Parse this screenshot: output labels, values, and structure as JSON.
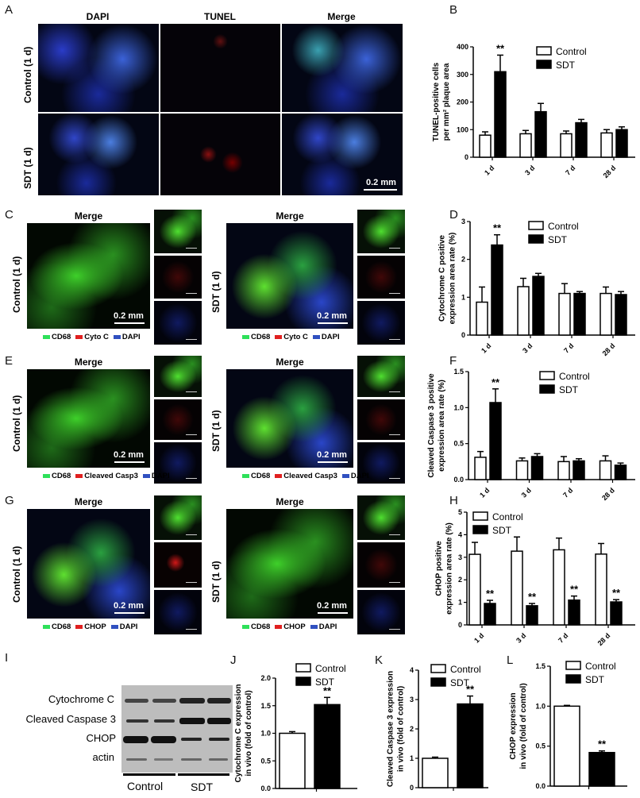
{
  "panels": {
    "A": "A",
    "B": "B",
    "C": "C",
    "D": "D",
    "E": "E",
    "F": "F",
    "G": "G",
    "H": "H",
    "I": "I",
    "J": "J",
    "K": "K",
    "L": "L"
  },
  "panel_a": {
    "columns": [
      "DAPI",
      "TUNEL",
      "Merge"
    ],
    "rows": [
      "Control (1 d)",
      "SDT (1 d)"
    ],
    "scale": "0.2 mm"
  },
  "panel_c": {
    "title_left": "Merge",
    "title_right": "Merge",
    "row_left": "Control (1 d)",
    "row_right": "SDT (1 d)",
    "scale": "0.2 mm",
    "legend": [
      "CD68",
      "Cyto C",
      "DAPI"
    ]
  },
  "panel_e": {
    "title_left": "Merge",
    "title_right": "Merge",
    "row_left": "Control (1 d)",
    "row_right": "SDT (1 d)",
    "scale": "0.2 mm",
    "legend": [
      "CD68",
      "Cleaved Casp3",
      "DAPI"
    ]
  },
  "panel_g": {
    "title_left": "Merge",
    "title_right": "Merge",
    "row_left": "Control (1 d)",
    "row_right": "SDT (1 d)",
    "scale": "0.2 mm",
    "legend": [
      "CD68",
      "CHOP",
      "DAPI"
    ]
  },
  "legend_colors": {
    "CD68": "#2ee05a",
    "red": "#e02020",
    "DAPI": "#3050c0"
  },
  "western_blot": {
    "bands": [
      "Cytochrome C",
      "Cleaved Caspase 3",
      "CHOP",
      "actin"
    ],
    "groups": [
      "Control",
      "SDT"
    ]
  },
  "chart_data": [
    {
      "id": "B",
      "type": "bar",
      "ylabel": [
        "TUNEL-positive cells",
        "per mm² plaque area"
      ],
      "categories": [
        "1 d",
        "3 d",
        "7 d",
        "28 d"
      ],
      "ylim": [
        0,
        400
      ],
      "yticks": [
        "0",
        "100",
        "200",
        "300",
        "400"
      ],
      "series": [
        {
          "name": "Control",
          "values": [
            80,
            85,
            85,
            88
          ],
          "errors": [
            12,
            12,
            10,
            12
          ],
          "color": "#ffffff"
        },
        {
          "name": "SDT",
          "values": [
            310,
            165,
            125,
            100
          ],
          "errors": [
            60,
            30,
            12,
            10
          ],
          "color": "#000000"
        }
      ],
      "sig": {
        "SDT": [
          "**",
          "",
          "",
          ""
        ],
        "Control": [
          "",
          "",
          "",
          ""
        ]
      },
      "legend": "top-right"
    },
    {
      "id": "D",
      "type": "bar",
      "ylabel": [
        "Cytochrome C positive",
        "expression area rate (%)"
      ],
      "categories": [
        "1 d",
        "3 d",
        "7 d",
        "28 d"
      ],
      "ylim": [
        0,
        3
      ],
      "yticks": [
        "0",
        "1",
        "2",
        "3"
      ],
      "series": [
        {
          "name": "Control",
          "values": [
            0.87,
            1.28,
            1.1,
            1.1
          ],
          "errors": [
            0.4,
            0.22,
            0.26,
            0.17
          ],
          "color": "#ffffff"
        },
        {
          "name": "SDT",
          "values": [
            2.38,
            1.55,
            1.1,
            1.07
          ],
          "errors": [
            0.27,
            0.08,
            0.05,
            0.08
          ],
          "color": "#000000"
        }
      ],
      "sig": {
        "SDT": [
          "**",
          "",
          "",
          ""
        ],
        "Control": [
          "",
          "",
          "",
          ""
        ]
      },
      "legend": "top-right"
    },
    {
      "id": "F",
      "type": "bar",
      "ylabel": [
        "Cleaved Caspase 3 positive",
        "expression area rate (%)"
      ],
      "categories": [
        "1 d",
        "3 d",
        "7 d",
        "28 d"
      ],
      "ylim": [
        0,
        1.5
      ],
      "yticks": [
        "0.0",
        "0.5",
        "1.0",
        "1.5"
      ],
      "series": [
        {
          "name": "Control",
          "values": [
            0.31,
            0.26,
            0.25,
            0.26
          ],
          "errors": [
            0.08,
            0.04,
            0.07,
            0.07
          ],
          "color": "#ffffff"
        },
        {
          "name": "SDT",
          "values": [
            1.07,
            0.32,
            0.26,
            0.2
          ],
          "errors": [
            0.19,
            0.04,
            0.03,
            0.03
          ],
          "color": "#000000"
        }
      ],
      "sig": {
        "SDT": [
          "**",
          "",
          "",
          ""
        ],
        "Control": [
          "",
          "",
          "",
          ""
        ]
      },
      "legend": "top-right"
    },
    {
      "id": "H",
      "type": "bar",
      "ylabel": [
        "CHOP positive",
        "expression area rate (%)"
      ],
      "categories": [
        "1 d",
        "3 d",
        "7 d",
        "28 d"
      ],
      "ylim": [
        0,
        5
      ],
      "yticks": [
        "0",
        "1",
        "2",
        "3",
        "4",
        "5"
      ],
      "series": [
        {
          "name": "Control",
          "values": [
            3.13,
            3.27,
            3.33,
            3.14
          ],
          "errors": [
            0.53,
            0.63,
            0.52,
            0.47
          ],
          "color": "#ffffff"
        },
        {
          "name": "SDT",
          "values": [
            0.95,
            0.85,
            1.1,
            1.02
          ],
          "errors": [
            0.14,
            0.1,
            0.18,
            0.1
          ],
          "color": "#000000"
        }
      ],
      "sig": {
        "SDT": [
          "**",
          "**",
          "**",
          "**"
        ],
        "Control": [
          "",
          "",
          "",
          ""
        ]
      },
      "legend": "top-left"
    },
    {
      "id": "J",
      "type": "bar",
      "ylabel": [
        "Cytochrome C expression",
        "in vivo (fold of control)"
      ],
      "categories": [
        ""
      ],
      "ylim": [
        0,
        2
      ],
      "yticks": [
        "0.0",
        "0.5",
        "1.0",
        "1.5",
        "2.0"
      ],
      "series": [
        {
          "name": "Control",
          "values": [
            1.0
          ],
          "errors": [
            0.03
          ],
          "color": "#ffffff"
        },
        {
          "name": "SDT",
          "values": [
            1.52
          ],
          "errors": [
            0.13
          ],
          "color": "#000000"
        }
      ],
      "sig": {
        "SDT": [
          "**"
        ],
        "Control": [
          ""
        ]
      },
      "legend": "top-left"
    },
    {
      "id": "K",
      "type": "bar",
      "ylabel": [
        "Cleaved Caspase 3 expression",
        "in vivo (fold of control)"
      ],
      "categories": [
        ""
      ],
      "ylim": [
        0,
        4
      ],
      "yticks": [
        "0",
        "1",
        "2",
        "3",
        "4"
      ],
      "series": [
        {
          "name": "Control",
          "values": [
            1.0
          ],
          "errors": [
            0.04
          ],
          "color": "#ffffff"
        },
        {
          "name": "SDT",
          "values": [
            2.85
          ],
          "errors": [
            0.27
          ],
          "color": "#000000"
        }
      ],
      "sig": {
        "SDT": [
          "**"
        ],
        "Control": [
          ""
        ]
      },
      "legend": "top-left"
    },
    {
      "id": "L",
      "type": "bar",
      "ylabel": [
        "CHOP expression",
        "in vivo (fold of control)"
      ],
      "categories": [
        ""
      ],
      "ylim": [
        0,
        1.5
      ],
      "yticks": [
        "0.0",
        "0.5",
        "1.0",
        "1.5"
      ],
      "series": [
        {
          "name": "Control",
          "values": [
            1.0
          ],
          "errors": [
            0.01
          ],
          "color": "#ffffff"
        },
        {
          "name": "SDT",
          "values": [
            0.42
          ],
          "errors": [
            0.02
          ],
          "color": "#000000"
        }
      ],
      "sig": {
        "SDT": [
          "**"
        ],
        "Control": [
          ""
        ]
      },
      "legend": "top-left"
    }
  ]
}
